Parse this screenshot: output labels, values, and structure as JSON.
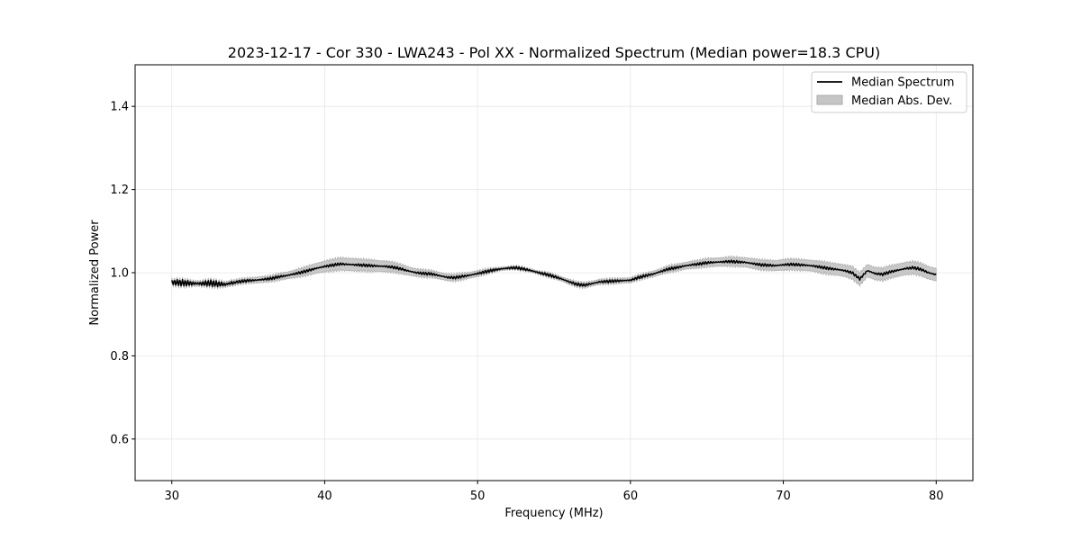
{
  "chart_data": {
    "type": "line",
    "title": "2023-12-17 - Cor 330 - LWA243 - Pol XX - Normalized Spectrum (Median power=18.3 CPU)",
    "xlabel": "Frequency (MHz)",
    "ylabel": "Normalized Power",
    "xlim": [
      27.6,
      82.4
    ],
    "ylim": [
      0.5,
      1.5
    ],
    "xticks": [
      30,
      40,
      50,
      60,
      70,
      80
    ],
    "xtick_labels": [
      "30",
      "40",
      "50",
      "60",
      "70",
      "80"
    ],
    "yticks": [
      0.6,
      0.8,
      1.0,
      1.2,
      1.4
    ],
    "ytick_labels": [
      "0.6",
      "0.8",
      "1.0",
      "1.2",
      "1.4"
    ],
    "grid": true,
    "legend_position": "top-right",
    "series": [
      {
        "name": "Median Spectrum",
        "color": "#000000",
        "x": [
          30,
          30.5,
          31,
          31.5,
          32,
          32.5,
          33,
          33.5,
          34,
          34.5,
          35,
          35.5,
          36,
          36.5,
          37,
          37.5,
          38,
          38.5,
          39,
          39.5,
          40,
          40.5,
          41,
          41.5,
          42,
          42.5,
          43,
          43.5,
          44,
          44.5,
          45,
          45.5,
          46,
          46.5,
          47,
          47.5,
          48,
          48.5,
          49,
          49.5,
          50,
          50.5,
          51,
          51.5,
          52,
          52.5,
          53,
          53.5,
          54,
          54.5,
          55,
          55.5,
          56,
          56.5,
          57,
          57.5,
          58,
          58.5,
          59,
          59.5,
          60,
          60.5,
          61,
          61.5,
          62,
          62.5,
          63,
          63.5,
          64,
          64.5,
          65,
          65.5,
          66,
          66.5,
          67,
          67.5,
          68,
          68.5,
          69,
          69.5,
          70,
          70.5,
          71,
          71.5,
          72,
          72.5,
          73,
          73.5,
          74,
          74.5,
          75,
          75.5,
          76,
          76.5,
          77,
          77.5,
          78,
          78.5,
          79,
          79.5,
          80
        ],
        "values": [
          0.977,
          0.976,
          0.975,
          0.974,
          0.974,
          0.975,
          0.973,
          0.972,
          0.976,
          0.979,
          0.981,
          0.982,
          0.984,
          0.986,
          0.99,
          0.993,
          0.997,
          1.001,
          1.006,
          1.011,
          1.015,
          1.018,
          1.021,
          1.02,
          1.019,
          1.018,
          1.017,
          1.016,
          1.015,
          1.013,
          1.009,
          1.004,
          1.0,
          0.998,
          0.997,
          0.993,
          0.989,
          0.988,
          0.991,
          0.994,
          0.998,
          1.002,
          1.006,
          1.009,
          1.011,
          1.012,
          1.009,
          1.005,
          1.0,
          0.996,
          0.991,
          0.985,
          0.978,
          0.972,
          0.97,
          0.974,
          0.978,
          0.979,
          0.98,
          0.981,
          0.982,
          0.988,
          0.993,
          0.997,
          1.003,
          1.009,
          1.012,
          1.016,
          1.019,
          1.021,
          1.024,
          1.025,
          1.026,
          1.027,
          1.026,
          1.025,
          1.022,
          1.019,
          1.018,
          1.017,
          1.019,
          1.02,
          1.019,
          1.018,
          1.016,
          1.013,
          1.01,
          1.008,
          1.005,
          1.0,
          0.985,
          1.005,
          0.998,
          0.996,
          1.002,
          1.006,
          1.01,
          1.012,
          1.008,
          1.0,
          0.995
        ]
      }
    ],
    "band": {
      "name": "Median Abs. Dev.",
      "color": "#c6c6c6",
      "half_width": [
        0.006,
        0.006,
        0.006,
        0.006,
        0.006,
        0.006,
        0.006,
        0.006,
        0.006,
        0.006,
        0.006,
        0.007,
        0.007,
        0.007,
        0.008,
        0.008,
        0.009,
        0.01,
        0.011,
        0.012,
        0.013,
        0.014,
        0.015,
        0.015,
        0.015,
        0.014,
        0.014,
        0.013,
        0.013,
        0.012,
        0.011,
        0.01,
        0.009,
        0.009,
        0.008,
        0.008,
        0.008,
        0.008,
        0.008,
        0.007,
        0.007,
        0.006,
        0.005,
        0.004,
        0.004,
        0.004,
        0.004,
        0.004,
        0.004,
        0.005,
        0.005,
        0.005,
        0.006,
        0.006,
        0.006,
        0.006,
        0.006,
        0.006,
        0.006,
        0.006,
        0.006,
        0.006,
        0.006,
        0.007,
        0.007,
        0.008,
        0.008,
        0.008,
        0.009,
        0.009,
        0.01,
        0.01,
        0.01,
        0.011,
        0.011,
        0.011,
        0.012,
        0.012,
        0.012,
        0.012,
        0.013,
        0.013,
        0.013,
        0.013,
        0.013,
        0.014,
        0.014,
        0.014,
        0.014,
        0.015,
        0.015,
        0.015,
        0.015,
        0.015,
        0.015,
        0.015,
        0.015,
        0.015,
        0.015,
        0.015,
        0.015
      ]
    }
  }
}
